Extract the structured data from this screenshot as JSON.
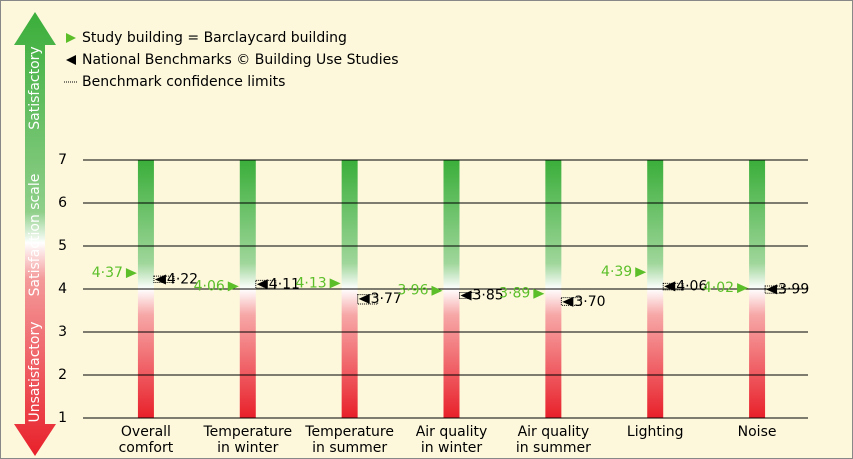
{
  "chart_data": {
    "type": "marker",
    "categories": [
      [
        "Overall",
        "comfort"
      ],
      [
        "Temperature",
        "in winter"
      ],
      [
        "Temperature",
        "in summer"
      ],
      [
        "Air quality",
        "in winter"
      ],
      [
        "Air quality",
        "in summer"
      ],
      [
        "Lighting"
      ],
      [
        "Noise"
      ]
    ],
    "series": [
      {
        "name": "Study building = Barclaycard building",
        "color": "#5cbf2a",
        "values": [
          4.37,
          4.06,
          4.13,
          3.96,
          3.89,
          4.39,
          4.02
        ],
        "value_labels": [
          "4·37",
          "4·06",
          "4·13",
          "3·96",
          "3·89",
          "4·39",
          "4·02"
        ]
      },
      {
        "name": "National Benchmarks © Building Use Studies",
        "color": "#000000",
        "values": [
          4.22,
          4.11,
          3.77,
          3.85,
          3.7,
          4.06,
          3.99
        ],
        "value_labels": [
          "4·22",
          "4·11",
          "3·77",
          "3·85",
          "3·70",
          "4·06",
          "3·99"
        ]
      }
    ],
    "confidence_limits": {
      "name": "Benchmark confidence limits",
      "lower": [
        4.15,
        4.02,
        3.65,
        3.78,
        3.62,
        3.98,
        3.9
      ],
      "upper": [
        4.3,
        4.2,
        3.87,
        3.92,
        3.8,
        4.13,
        4.07
      ]
    },
    "scale_labels": [
      "Unsatisfactory",
      "Satisfaction scale",
      "Satisfactory"
    ],
    "ylim": [
      1,
      7
    ],
    "yticks": [
      1,
      2,
      3,
      4,
      5,
      6,
      7
    ],
    "grid": true
  }
}
